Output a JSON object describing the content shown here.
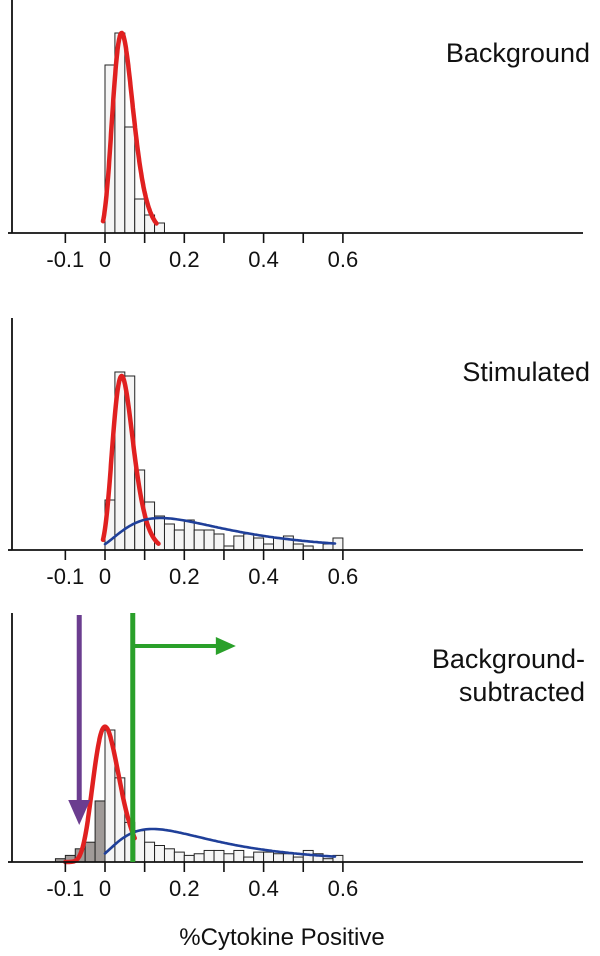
{
  "chart_data": [
    {
      "type": "bar",
      "title": "Background",
      "xlim": [
        -0.12,
        0.6
      ],
      "bin_width": 0.025,
      "xticks": [
        -0.1,
        0,
        0.2,
        0.4,
        0.6
      ],
      "xtick_labels": [
        "-0.1",
        "0",
        "0.2",
        "0.4",
        "0.6"
      ],
      "bins": [
        {
          "x0": 0.0,
          "count": 0.84
        },
        {
          "x0": 0.025,
          "count": 1.0
        },
        {
          "x0": 0.05,
          "count": 0.53
        },
        {
          "x0": 0.075,
          "count": 0.17
        },
        {
          "x0": 0.1,
          "count": 0.09
        },
        {
          "x0": 0.125,
          "count": 0.05
        }
      ],
      "curves": [
        {
          "color": "#e02020",
          "mode": 0.042,
          "spread": 0.026,
          "peak": 1.0,
          "x0": -0.005,
          "x1": 0.13
        }
      ]
    },
    {
      "type": "bar",
      "title": "Stimulated",
      "xlim": [
        -0.12,
        0.6
      ],
      "bin_width": 0.025,
      "xticks": [
        -0.1,
        0,
        0.2,
        0.4,
        0.6
      ],
      "xtick_labels": [
        "-0.1",
        "0",
        "0.2",
        "0.4",
        "0.6"
      ],
      "bins": [
        {
          "x0": 0.0,
          "count": 0.25
        },
        {
          "x0": 0.025,
          "count": 0.89
        },
        {
          "x0": 0.05,
          "count": 0.87
        },
        {
          "x0": 0.075,
          "count": 0.4
        },
        {
          "x0": 0.1,
          "count": 0.24
        },
        {
          "x0": 0.125,
          "count": 0.17
        },
        {
          "x0": 0.15,
          "count": 0.13
        },
        {
          "x0": 0.175,
          "count": 0.1
        },
        {
          "x0": 0.2,
          "count": 0.15
        },
        {
          "x0": 0.225,
          "count": 0.1
        },
        {
          "x0": 0.25,
          "count": 0.1
        },
        {
          "x0": 0.275,
          "count": 0.08
        },
        {
          "x0": 0.3,
          "count": 0.02
        },
        {
          "x0": 0.325,
          "count": 0.07
        },
        {
          "x0": 0.35,
          "count": 0.08
        },
        {
          "x0": 0.375,
          "count": 0.06
        },
        {
          "x0": 0.4,
          "count": 0.03
        },
        {
          "x0": 0.425,
          "count": 0.06
        },
        {
          "x0": 0.45,
          "count": 0.07
        },
        {
          "x0": 0.475,
          "count": 0.03
        },
        {
          "x0": 0.5,
          "count": 0.02
        },
        {
          "x0": 0.525,
          "count": 0.0
        },
        {
          "x0": 0.55,
          "count": 0.03
        },
        {
          "x0": 0.575,
          "count": 0.06
        }
      ],
      "curves": [
        {
          "color": "#e02020",
          "mode": 0.042,
          "spread": 0.026,
          "peak": 0.87,
          "x0": -0.005,
          "x1": 0.135
        },
        {
          "color": "#1f3f99",
          "mode": 0.14,
          "spread": 0.13,
          "peak": 0.16,
          "x0": 0.0,
          "x1": 0.58
        }
      ]
    },
    {
      "type": "bar",
      "title": "Background-subtracted",
      "title_lines": [
        "Background-",
        "subtracted"
      ],
      "xlabel": "%Cytokine Positive",
      "xlim": [
        -0.12,
        0.6
      ],
      "bin_width": 0.025,
      "xticks": [
        -0.1,
        0,
        0.2,
        0.4,
        0.6
      ],
      "xtick_labels": [
        "-0.1",
        "0",
        "0.2",
        "0.4",
        "0.6"
      ],
      "gray_bins_below": 0.0,
      "bins": [
        {
          "x0": -0.125,
          "count": 0.02
        },
        {
          "x0": -0.1,
          "count": 0.04
        },
        {
          "x0": -0.075,
          "count": 0.08
        },
        {
          "x0": -0.05,
          "count": 0.12
        },
        {
          "x0": -0.025,
          "count": 0.37
        },
        {
          "x0": 0.0,
          "count": 0.8
        },
        {
          "x0": 0.025,
          "count": 0.51
        },
        {
          "x0": 0.05,
          "count": 0.24
        },
        {
          "x0": 0.075,
          "count": 0.19
        },
        {
          "x0": 0.1,
          "count": 0.12
        },
        {
          "x0": 0.125,
          "count": 0.1
        },
        {
          "x0": 0.15,
          "count": 0.08
        },
        {
          "x0": 0.175,
          "count": 0.06
        },
        {
          "x0": 0.2,
          "count": 0.04
        },
        {
          "x0": 0.225,
          "count": 0.05
        },
        {
          "x0": 0.25,
          "count": 0.07
        },
        {
          "x0": 0.275,
          "count": 0.07
        },
        {
          "x0": 0.3,
          "count": 0.05
        },
        {
          "x0": 0.325,
          "count": 0.07
        },
        {
          "x0": 0.35,
          "count": 0.03
        },
        {
          "x0": 0.375,
          "count": 0.06
        },
        {
          "x0": 0.4,
          "count": 0.06
        },
        {
          "x0": 0.425,
          "count": 0.05
        },
        {
          "x0": 0.45,
          "count": 0.05
        },
        {
          "x0": 0.475,
          "count": 0.03
        },
        {
          "x0": 0.5,
          "count": 0.07
        },
        {
          "x0": 0.525,
          "count": 0.05
        },
        {
          "x0": 0.55,
          "count": 0.02
        },
        {
          "x0": 0.575,
          "count": 0.04
        }
      ],
      "curves": [
        {
          "color": "#e02020",
          "mode": 0.0,
          "spread": 0.033,
          "peak": 0.82,
          "x0": -0.1,
          "x1": 0.075
        },
        {
          "color": "#1f3f99",
          "mode": 0.12,
          "spread": 0.12,
          "peak": 0.2,
          "x0": 0.0,
          "x1": 0.58
        }
      ],
      "threshold": {
        "x": 0.07,
        "color": "#2aa02a",
        "arrow_to_x": 0.33
      },
      "marker_arrow": {
        "x": -0.065,
        "color": "#6b3d8f"
      }
    }
  ]
}
